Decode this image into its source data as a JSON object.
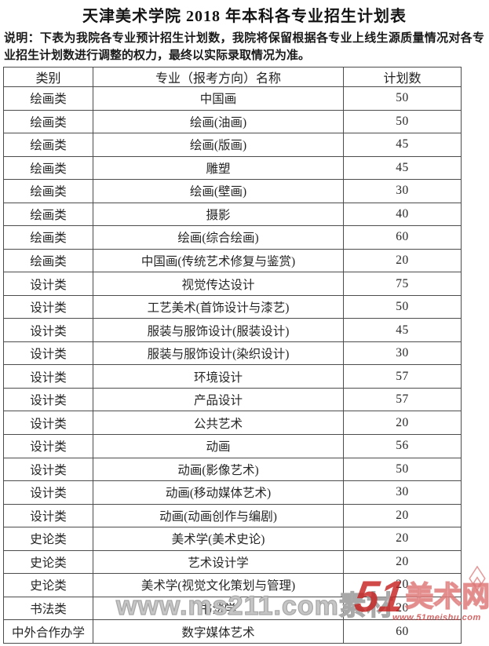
{
  "title": "天津美术学院 2018 年本科各专业招生计划表",
  "note": "说明：下表为我院各专业预计招生计划数，我院将保留根据各专业上线生源质量情况对各专业招生计划数进行调整的权力，最终以实际录取情况为准。",
  "table": {
    "headers": [
      "类别",
      "专业（报考方向）名称",
      "计划数"
    ],
    "rows": [
      {
        "category": "绘画类",
        "major": "中国画",
        "count": "50"
      },
      {
        "category": "绘画类",
        "major": "绘画(油画)",
        "count": "50"
      },
      {
        "category": "绘画类",
        "major": "绘画(版画)",
        "count": "45"
      },
      {
        "category": "绘画类",
        "major": "雕塑",
        "count": "45"
      },
      {
        "category": "绘画类",
        "major": "绘画(壁画)",
        "count": "30"
      },
      {
        "category": "绘画类",
        "major": "摄影",
        "count": "40"
      },
      {
        "category": "绘画类",
        "major": "绘画(综合绘画)",
        "count": "60"
      },
      {
        "category": "绘画类",
        "major": "中国画(传统艺术修复与鉴赏)",
        "count": "20"
      },
      {
        "category": "设计类",
        "major": "视觉传达设计",
        "count": "75"
      },
      {
        "category": "设计类",
        "major": "工艺美术(首饰设计与漆艺)",
        "count": "50"
      },
      {
        "category": "设计类",
        "major": "服装与服饰设计(服装设计)",
        "count": "45"
      },
      {
        "category": "设计类",
        "major": "服装与服饰设计(染织设计)",
        "count": "30"
      },
      {
        "category": "设计类",
        "major": "环境设计",
        "count": "57"
      },
      {
        "category": "设计类",
        "major": "产品设计",
        "count": "57"
      },
      {
        "category": "设计类",
        "major": "公共艺术",
        "count": "20"
      },
      {
        "category": "设计类",
        "major": "动画",
        "count": "56"
      },
      {
        "category": "设计类",
        "major": "动画(影像艺术)",
        "count": "50"
      },
      {
        "category": "设计类",
        "major": "动画(移动媒体艺术)",
        "count": "30"
      },
      {
        "category": "设计类",
        "major": "动画(动画创作与编剧)",
        "count": "20"
      },
      {
        "category": "史论类",
        "major": "美术学(美术史论)",
        "count": "20"
      },
      {
        "category": "史论类",
        "major": "艺术设计学",
        "count": "20"
      },
      {
        "category": "史论类",
        "major": "美术学(视觉文化策划与管理)",
        "count": "20"
      },
      {
        "category": "书法类",
        "major": "书法学",
        "count": "20"
      },
      {
        "category": "中外合作办学",
        "major": "数字媒体艺术",
        "count": "60"
      }
    ]
  },
  "watermarks": {
    "gray_text": "www.ms211.com素材",
    "logo_51": "51",
    "logo_name": "美术网",
    "logo_url": "www.51meishu.com",
    "gray_color": "#a8a8a8",
    "red_color": "#c62222"
  }
}
